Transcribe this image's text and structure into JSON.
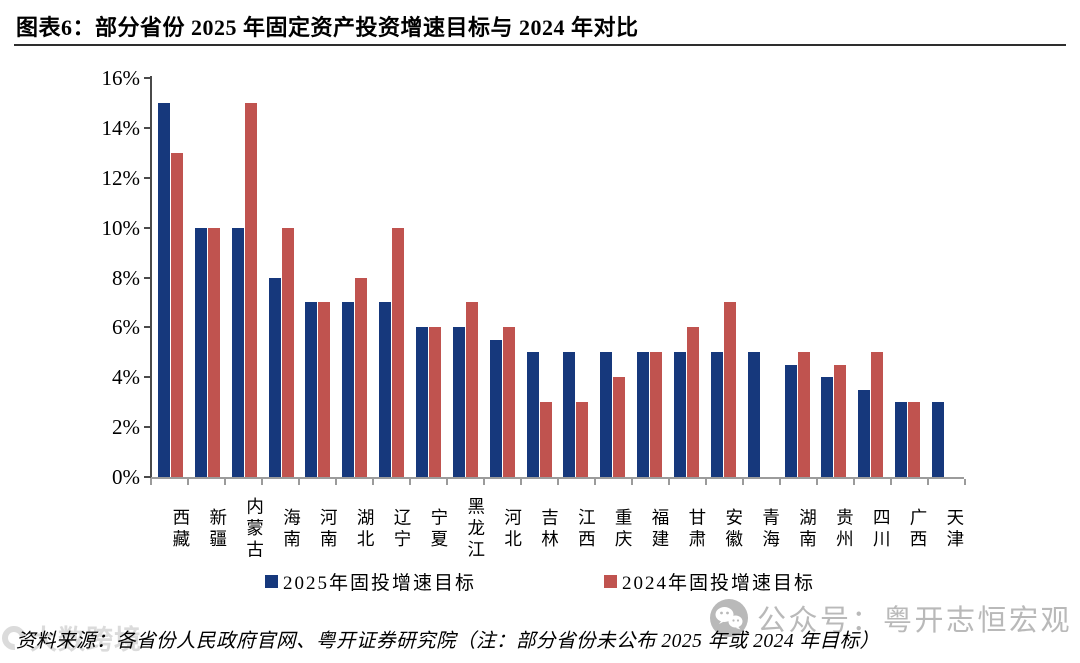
{
  "title": "图表6：部分省份 2025 年固定资产投资增速目标与 2024 年对比",
  "chart_data": {
    "type": "bar",
    "title": "部分省份 2025 年固定资产投资增速目标与 2024 年对比",
    "categories": [
      "西藏",
      "新疆",
      "内蒙古",
      "海南",
      "河南",
      "湖北",
      "辽宁",
      "宁夏",
      "黑龙江",
      "河北",
      "吉林",
      "江西",
      "重庆",
      "福建",
      "甘肃",
      "安徽",
      "青海",
      "湖南",
      "贵州",
      "四川",
      "广西",
      "天津"
    ],
    "series": [
      {
        "name": "2025年固投增速目标",
        "color": "#16387c",
        "values": [
          15,
          10,
          10,
          8,
          7,
          7,
          7,
          6,
          6,
          5.5,
          5,
          5,
          5,
          5,
          5,
          5,
          5,
          4.5,
          4,
          3.5,
          3,
          3
        ]
      },
      {
        "name": "2024年固投增速目标",
        "color": "#c0534f",
        "values": [
          13,
          10,
          15,
          10,
          7,
          8,
          10,
          6,
          7,
          6,
          3,
          3,
          4,
          5,
          6,
          7,
          null,
          5,
          4.5,
          5,
          3,
          null
        ]
      }
    ],
    "xlabel": "",
    "ylabel": "",
    "ylim": [
      0,
      16
    ],
    "ytick_step": 2,
    "ytick_labels": [
      "16%",
      "14%",
      "12%",
      "10%",
      "8%",
      "6%",
      "4%",
      "2%",
      "0%"
    ],
    "grid": false,
    "legend_position": "bottom",
    "unit": "percent"
  },
  "source_note": "资料来源：各省份人民政府官网、粤开证券研究院（注：部分省份未公布 2025 年或 2024 年目标）",
  "watermark": {
    "text": "公众号：粤开志恒宏观",
    "icon": "wechat-icon",
    "color": "#b9b9b9"
  },
  "corner_watermark": {
    "text": "大数跨境"
  },
  "colors": {
    "bar_2025": "#16387c",
    "bar_2024": "#c0534f",
    "y_axis": "#4a4a4a",
    "x_axis": "#9b9b9b"
  }
}
